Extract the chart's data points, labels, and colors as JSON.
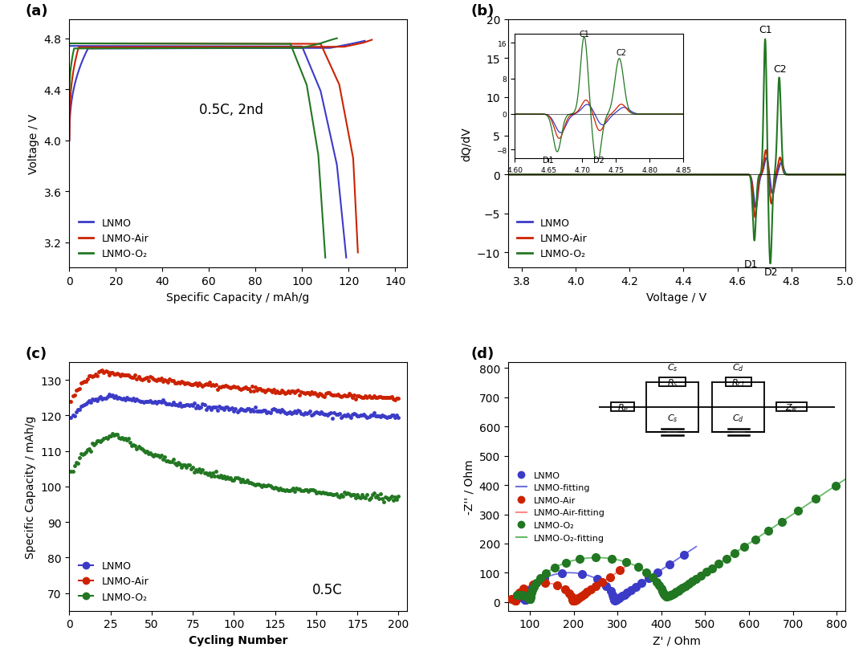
{
  "colors": {
    "blue": "#3B3BC8",
    "red": "#CC2200",
    "green": "#227722",
    "blue_light": "#7070DD",
    "red_light": "#FF8888",
    "green_light": "#66BB66"
  },
  "panel_a": {
    "title": "0.5C, 2nd",
    "xlabel": "Specific Capacity / mAh/g",
    "ylabel": "Voltage / V",
    "xlim": [
      0,
      145
    ],
    "ylim": [
      3.0,
      4.95
    ],
    "yticks": [
      3.2,
      3.6,
      4.0,
      4.4,
      4.8
    ]
  },
  "panel_b": {
    "xlabel": "Voltage / V",
    "ylabel": "dQ/dV",
    "xlim": [
      3.75,
      5.0
    ],
    "ylim": [
      -12,
      20
    ],
    "yticks": [
      -10,
      -5,
      0,
      5,
      10,
      15,
      20
    ]
  },
  "panel_c": {
    "xlabel": "Cycling Number",
    "ylabel": "Specific Capacity / mAh/g",
    "xlim": [
      0,
      205
    ],
    "ylim": [
      65,
      135
    ],
    "yticks": [
      70,
      80,
      90,
      100,
      110,
      120,
      130
    ],
    "annotation": "0.5C"
  },
  "panel_d": {
    "xlabel": "Z' / Ohm",
    "ylabel": "-Z'' / Ohm",
    "xlim": [
      50,
      820
    ],
    "ylim": [
      -30,
      820
    ],
    "xticks": [
      100,
      200,
      300,
      400,
      500,
      600,
      700,
      800
    ],
    "yticks": [
      0,
      100,
      200,
      300,
      400,
      500,
      600,
      700,
      800
    ]
  },
  "legend_labels": [
    "LNMO",
    "LNMO-Air",
    "LNMO-O₂"
  ]
}
